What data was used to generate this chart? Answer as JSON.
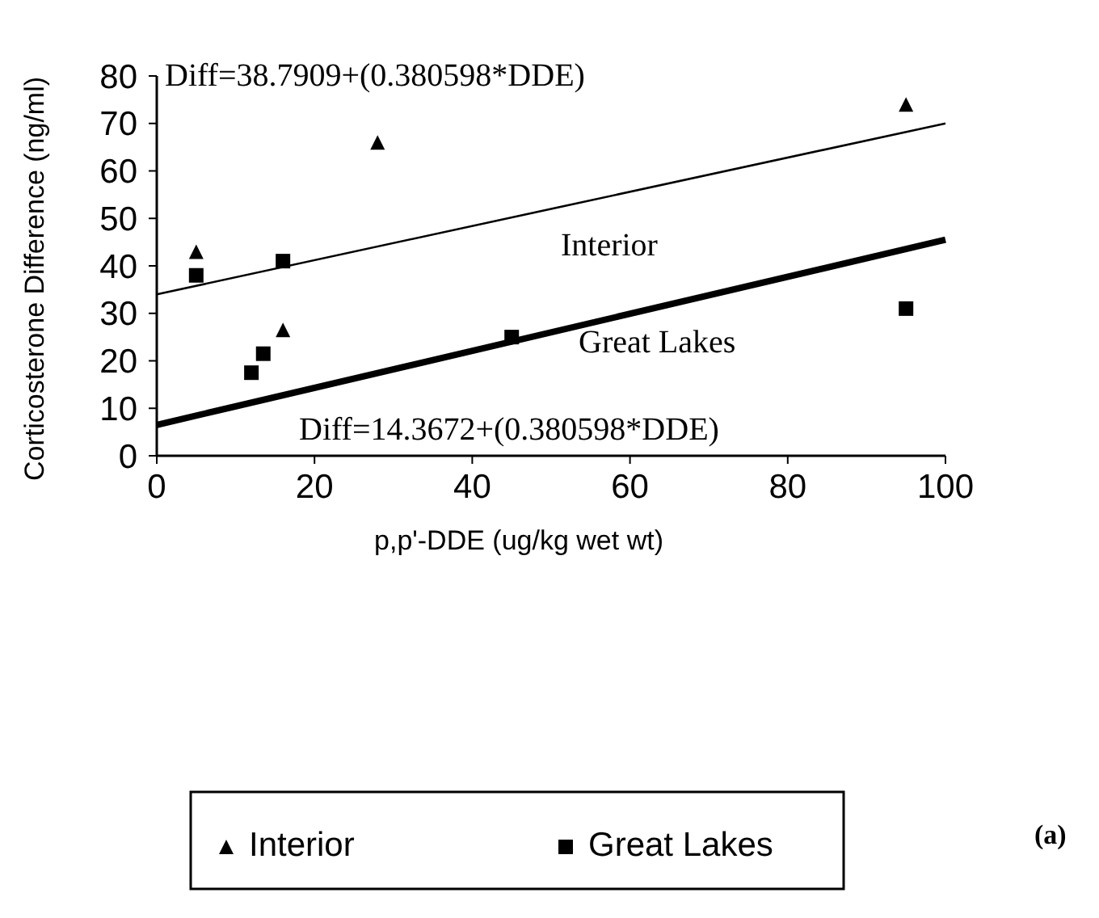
{
  "chart_data": {
    "type": "scatter",
    "xlabel": "p,p'-DDE (ug/kg wet wt)",
    "ylabel": "Corticosterone Difference (ng/ml)",
    "xlim": [
      0,
      100
    ],
    "xticks": [
      0,
      20,
      40,
      60,
      80,
      100
    ],
    "ylim": [
      0,
      80
    ],
    "yticks": [
      0,
      10,
      20,
      30,
      40,
      50,
      60,
      70,
      80
    ],
    "grid": false,
    "legend": "bottom",
    "series": [
      {
        "name": "Interior",
        "marker": "triangle",
        "color": "#000000",
        "x": [
          5,
          16,
          28,
          95
        ],
        "values": [
          43,
          26.5,
          66,
          74
        ]
      },
      {
        "name": "Great Lakes",
        "marker": "square",
        "color": "#000000",
        "x": [
          5,
          12,
          13.5,
          16,
          45,
          95
        ],
        "values": [
          38,
          17.5,
          21.5,
          41,
          25,
          31
        ]
      },
      {
        "type": "line",
        "marker": "none",
        "color": "#000000",
        "x": [
          0,
          100
        ],
        "values": [
          34,
          70
        ]
      },
      {
        "type": "line",
        "marker": "none",
        "color": "#000000",
        "x": [
          0,
          100
        ],
        "values": [
          6.5,
          45.5
        ]
      }
    ],
    "annotations": [
      "Diff=38.7909+(0.380598*DDE)",
      "Interior",
      "Great Lakes",
      "Diff=14.3672+(0.380598*DDE)",
      "(a)"
    ]
  }
}
